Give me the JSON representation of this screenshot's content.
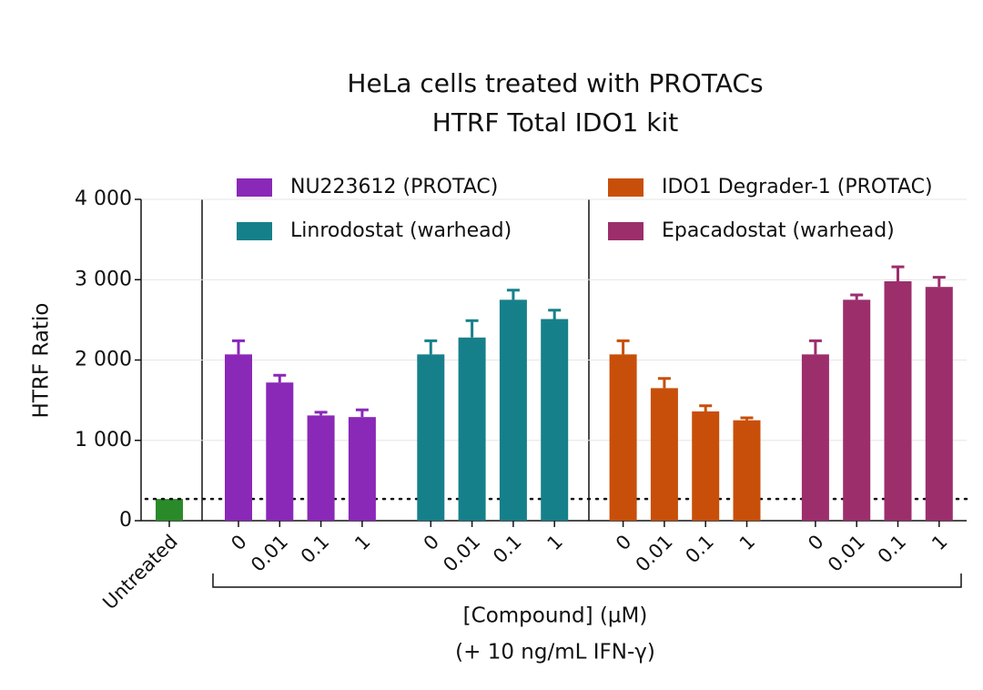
{
  "chart_data": {
    "type": "bar",
    "title": [
      "HeLa cells treated with PROTACs",
      "HTRF Total IDO1 kit"
    ],
    "y_label": "HTRF Ratio",
    "x_label": [
      "[Compound] (µM)",
      "(+ 10 ng/mL IFN-γ)"
    ],
    "ylim": [
      0,
      4000
    ],
    "yticks": [
      0,
      {
        "value": 1000,
        "label": "1 000"
      },
      {
        "value": 2000,
        "label": "2 000"
      },
      {
        "value": 3000,
        "label": "3 000"
      },
      {
        "value": 4000,
        "label": "4 000"
      }
    ],
    "grid": true,
    "untreated": {
      "label": "Untreated",
      "value": 270,
      "color": "#2a8a2a"
    },
    "doses": [
      "0",
      "0.01",
      "0.1",
      "1"
    ],
    "series": [
      {
        "name": "NU223612 (PROTAC)",
        "color": "#8a28b8",
        "values": [
          2070,
          1720,
          1310,
          1290
        ],
        "errors": [
          170,
          90,
          40,
          90
        ]
      },
      {
        "name": "Linrodostat (warhead)",
        "color": "#16808a",
        "values": [
          2070,
          2280,
          2750,
          2510
        ],
        "errors": [
          170,
          210,
          120,
          110
        ]
      },
      {
        "name": "IDO1 Degrader-1 (PROTAC)",
        "color": "#c84f0a",
        "values": [
          2070,
          1650,
          1360,
          1250
        ],
        "errors": [
          170,
          120,
          70,
          30
        ]
      },
      {
        "name": "Epacadostat (warhead)",
        "color": "#9c2e6c",
        "values": [
          2070,
          2750,
          2980,
          2910
        ],
        "errors": [
          170,
          60,
          180,
          120
        ]
      }
    ]
  }
}
